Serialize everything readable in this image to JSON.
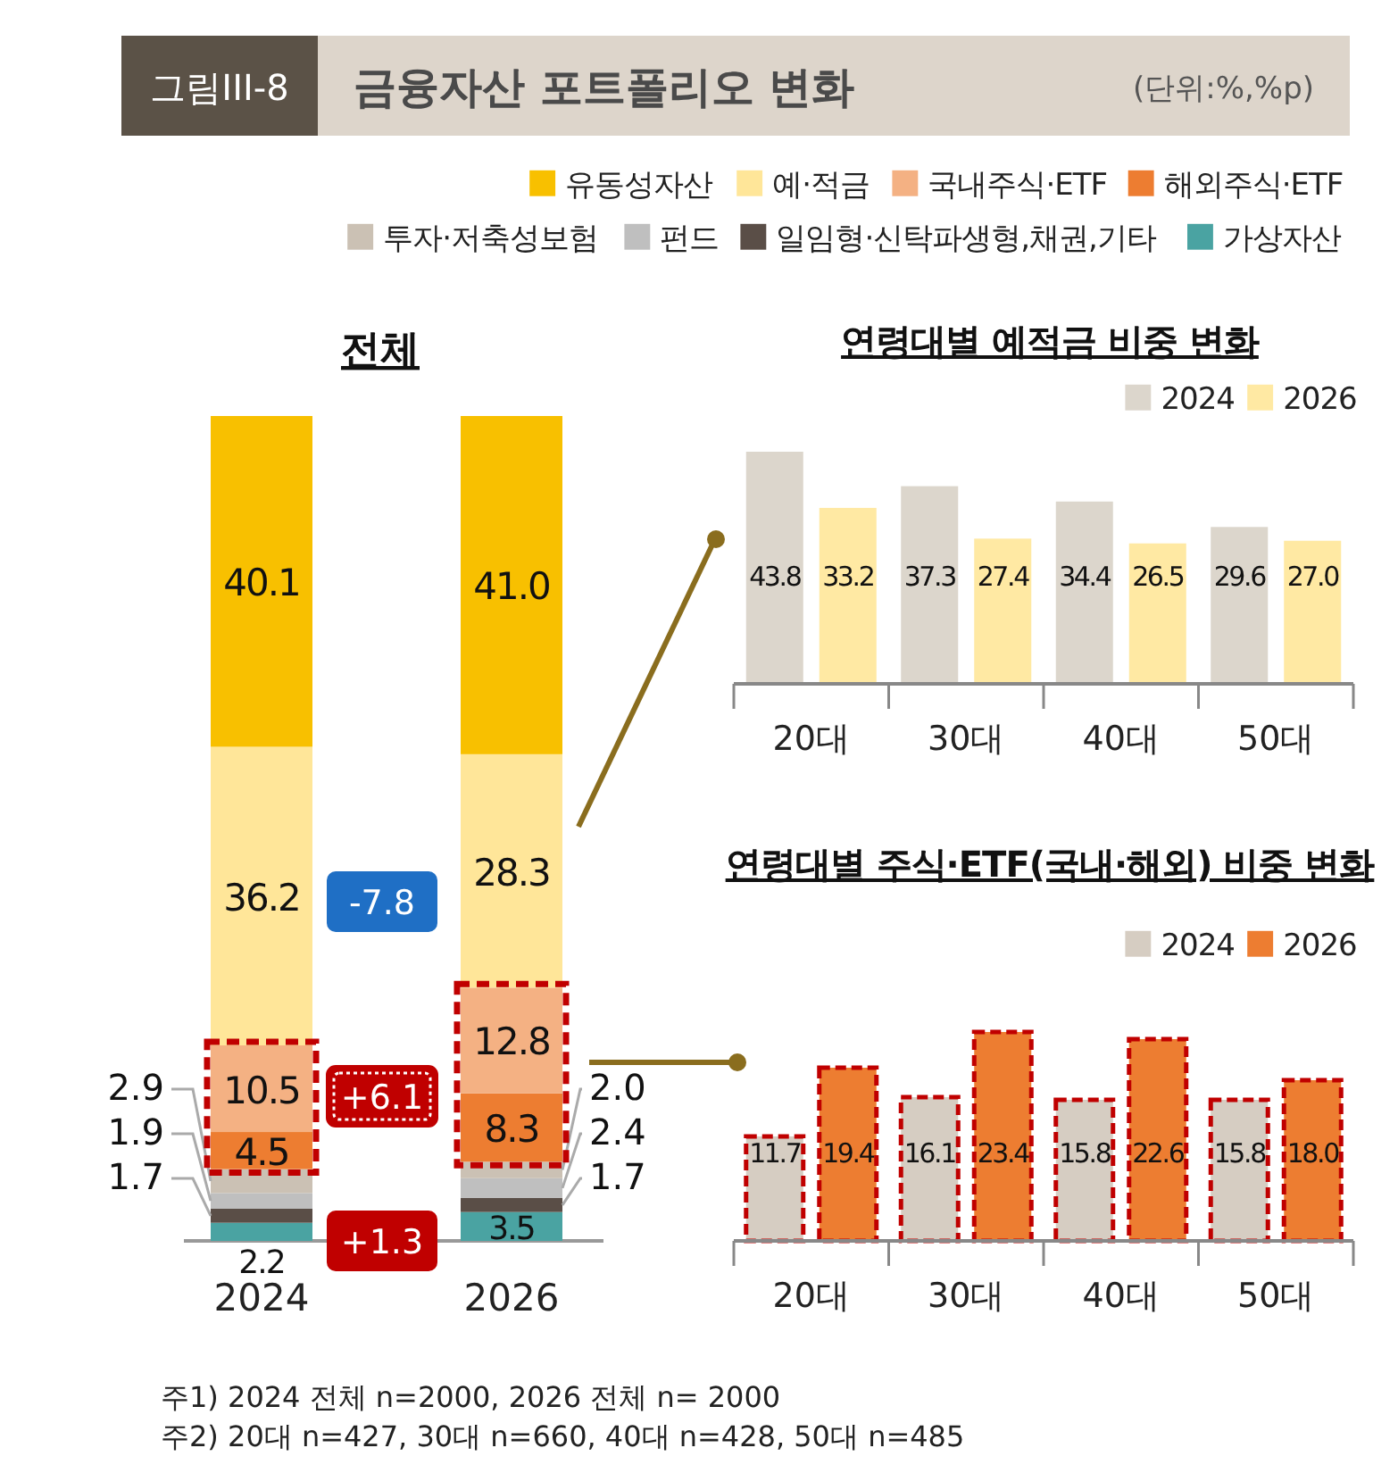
{
  "chart_data": [
    {
      "type": "bar",
      "title": "금융자산 포트폴리오 변화",
      "subtitle": "전체",
      "stacked": true,
      "legend": "top",
      "categories": [
        "2024",
        "2026"
      ],
      "series": [
        {
          "name": "가상자산",
          "color": "#4aa3a2",
          "values": [
            2.2,
            3.5
          ],
          "value_labels": [
            "2.2",
            "3.5"
          ]
        },
        {
          "name": "일임형·신탁파생형,채권,기타",
          "color": "#5a4e47",
          "values": [
            1.7,
            1.7
          ],
          "value_labels": [
            "1.7",
            "1.7"
          ]
        },
        {
          "name": "펀드",
          "color": "#bfbfbf",
          "values": [
            1.9,
            2.4
          ],
          "value_labels": [
            "1.9",
            "2.4"
          ]
        },
        {
          "name": "투자·저축성보험",
          "color": "#cbc1b4",
          "values": [
            2.9,
            2.0
          ],
          "value_labels": [
            "2.9",
            "2.0"
          ]
        },
        {
          "name": "해외주식·ETF",
          "color": "#ed7d31",
          "values": [
            4.5,
            8.3
          ],
          "value_labels": [
            "4.5",
            "8.3"
          ]
        },
        {
          "name": "국내주식·ETF",
          "color": "#f4b183",
          "values": [
            10.5,
            12.8
          ],
          "value_labels": [
            "10.5",
            "12.8"
          ]
        },
        {
          "name": "예·적금",
          "color": "#ffe699",
          "values": [
            36.2,
            28.3
          ],
          "value_labels": [
            "36.2",
            "28.3"
          ]
        },
        {
          "name": "유동성자산",
          "color": "#f8c000",
          "values": [
            40.1,
            41.0
          ],
          "value_labels": [
            "40.1",
            "41.0"
          ]
        }
      ],
      "annotations": [
        "그림III-8",
        "(단위:%,%p)",
        "-7.8",
        "+6.1",
        "+1.3",
        "주1) 2024 전체 n=2000, 2026 전체 n= 2000",
        "주2) 20대 n=427, 30대 n=660, 40대 n=428, 50대 n=485"
      ]
    },
    {
      "type": "bar",
      "title": "연령대별 예적금 비중 변화",
      "legend": "top right",
      "categories": [
        "20대",
        "30대",
        "40대",
        "50대"
      ],
      "series": [
        {
          "name": "2024",
          "color": "#dcd6cc",
          "values": [
            43.8,
            37.3,
            34.4,
            29.6
          ],
          "value_labels": [
            "43.8",
            "37.3",
            "34.4",
            "29.6"
          ]
        },
        {
          "name": "2026",
          "color": "#ffe9a3",
          "values": [
            33.2,
            27.4,
            26.5,
            27.0
          ],
          "value_labels": [
            "33.2",
            "27.4",
            "26.5",
            "27.0"
          ]
        }
      ]
    },
    {
      "type": "bar",
      "title": "연령대별 주식·ETF(국내·해외) 비중 변화",
      "legend": "top right",
      "categories": [
        "20대",
        "30대",
        "40대",
        "50대"
      ],
      "series": [
        {
          "name": "2024",
          "color": "#d6cdc2",
          "values": [
            11.7,
            16.1,
            15.8,
            15.8
          ],
          "value_labels": [
            "11.7",
            "16.1",
            "15.8",
            "15.8"
          ]
        },
        {
          "name": "2026",
          "color": "#ed7d31",
          "values": [
            19.4,
            23.4,
            22.6,
            18.0
          ],
          "value_labels": [
            "19.4",
            "23.4",
            "22.6",
            "18.0"
          ]
        }
      ]
    }
  ]
}
